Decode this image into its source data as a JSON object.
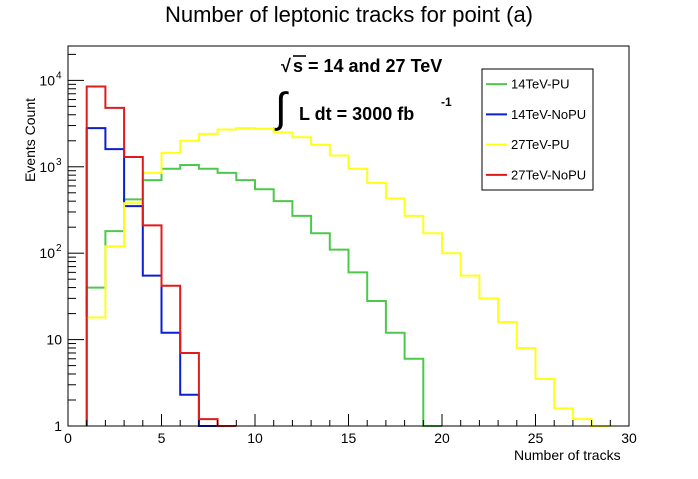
{
  "chart_data": {
    "type": "step-histogram",
    "title": "Number of leptonic tracks for point (a)",
    "xlabel": "Number of tracks",
    "ylabel": "Events Count",
    "xlim": [
      0,
      30
    ],
    "ylim": [
      1,
      25000
    ],
    "yscale": "log",
    "bin_width": 1,
    "x_ticks": [
      0,
      5,
      10,
      15,
      20,
      25,
      30
    ],
    "y_ticks": [
      {
        "value": 1,
        "label": "1"
      },
      {
        "value": 10,
        "label": "10"
      },
      {
        "value": 100,
        "label": "10",
        "exp": "2"
      },
      {
        "value": 1000,
        "label": "10",
        "exp": "3"
      },
      {
        "value": 10000,
        "label": "10",
        "exp": "4"
      }
    ],
    "annotation": {
      "sqrt_text": "s = 14 and 27 TeV",
      "lumi_text": "L dt = 3000 fb",
      "lumi_exp": "-1"
    },
    "legend_position": "top-right",
    "series": [
      {
        "name": "14TeV-PU",
        "color": "#4cc94c",
        "bins": [
          [
            1,
            40
          ],
          [
            2,
            180
          ],
          [
            3,
            420
          ],
          [
            4,
            700
          ],
          [
            5,
            950
          ],
          [
            6,
            1050
          ],
          [
            7,
            950
          ],
          [
            8,
            850
          ],
          [
            9,
            700
          ],
          [
            10,
            550
          ],
          [
            11,
            400
          ],
          [
            12,
            270
          ],
          [
            13,
            170
          ],
          [
            14,
            110
          ],
          [
            15,
            60
          ],
          [
            16,
            28
          ],
          [
            17,
            12
          ],
          [
            18,
            6
          ],
          [
            19,
            1
          ]
        ]
      },
      {
        "name": "14TeV-NoPU",
        "color": "#0d1fcf",
        "bins": [
          [
            1,
            2800
          ],
          [
            2,
            1600
          ],
          [
            3,
            350
          ],
          [
            4,
            55
          ],
          [
            5,
            12
          ],
          [
            6,
            2.3
          ],
          [
            7,
            1
          ]
        ]
      },
      {
        "name": "27TeV-PU",
        "color": "#ffff1a",
        "bins": [
          [
            1,
            18
          ],
          [
            2,
            120
          ],
          [
            3,
            380
          ],
          [
            4,
            850
          ],
          [
            5,
            1450
          ],
          [
            6,
            2000
          ],
          [
            7,
            2400
          ],
          [
            8,
            2700
          ],
          [
            9,
            2800
          ],
          [
            10,
            2750
          ],
          [
            11,
            2500
          ],
          [
            12,
            2200
          ],
          [
            13,
            1800
          ],
          [
            14,
            1350
          ],
          [
            15,
            950
          ],
          [
            16,
            650
          ],
          [
            17,
            430
          ],
          [
            18,
            270
          ],
          [
            19,
            170
          ],
          [
            20,
            100
          ],
          [
            21,
            55
          ],
          [
            22,
            30
          ],
          [
            23,
            16
          ],
          [
            24,
            8
          ],
          [
            25,
            3.5
          ],
          [
            26,
            1.6
          ],
          [
            27,
            1.2
          ],
          [
            28,
            1
          ]
        ]
      },
      {
        "name": "27TeV-NoPU",
        "color": "#e01b1b",
        "bins": [
          [
            1,
            8500
          ],
          [
            2,
            4800
          ],
          [
            3,
            1300
          ],
          [
            4,
            210
          ],
          [
            5,
            42
          ],
          [
            6,
            7
          ],
          [
            7,
            1.2
          ],
          [
            8,
            1
          ]
        ]
      }
    ]
  }
}
